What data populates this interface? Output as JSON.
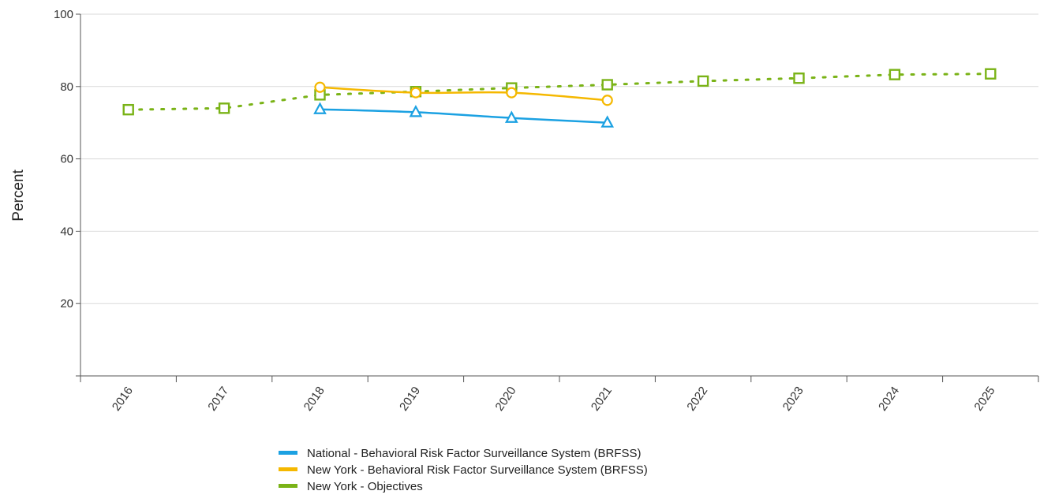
{
  "chart_data": {
    "type": "line",
    "title": "",
    "xlabel": "",
    "ylabel": "Percent",
    "ylim": [
      0,
      100
    ],
    "yticks": [
      20,
      40,
      60,
      80,
      100
    ],
    "categories": [
      "2016",
      "2017",
      "2018",
      "2019",
      "2020",
      "2021",
      "2022",
      "2023",
      "2024",
      "2025"
    ],
    "grid": "horizontal",
    "legend_position": "bottom",
    "series": [
      {
        "name": "National - Behavioral Risk Factor Surveillance System (BRFSS)",
        "color": "#1ba1e2",
        "marker": "triangle",
        "line_style": "solid",
        "values": [
          null,
          null,
          73.7,
          72.9,
          71.3,
          70.0,
          null,
          null,
          null,
          null
        ]
      },
      {
        "name": "New York - Behavioral Risk Factor Surveillance System (BRFSS)",
        "color": "#f5b800",
        "marker": "circle",
        "line_style": "solid",
        "values": [
          null,
          null,
          79.8,
          78.3,
          78.3,
          76.2,
          null,
          null,
          null,
          null
        ]
      },
      {
        "name": "New York - Objectives",
        "color": "#7ab317",
        "marker": "square",
        "line_style": "dotted",
        "values": [
          73.6,
          74.0,
          77.7,
          78.6,
          79.6,
          80.5,
          81.5,
          82.3,
          83.3,
          83.5
        ]
      }
    ]
  }
}
